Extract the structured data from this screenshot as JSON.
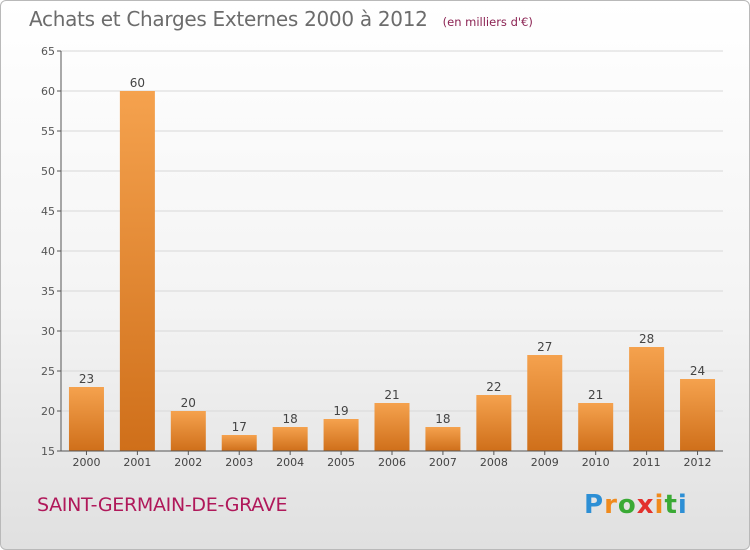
{
  "title": "Achats et Charges Externes 2000 à 2012",
  "subtitle": "(en milliers d'€)",
  "commune": "SAINT-GERMAIN-DE-GRAVE",
  "brand": {
    "text": "Proxiti"
  },
  "colors": {
    "bar_light": "#f5a24e",
    "bar_dark": "#cf6f1a",
    "axis": "#555555",
    "grid": "#d8d8d8",
    "title": "#6c6c6c",
    "commune": "#b0185a"
  },
  "chart_data": {
    "type": "bar",
    "categories": [
      "2000",
      "2001",
      "2002",
      "2003",
      "2004",
      "2005",
      "2006",
      "2007",
      "2008",
      "2009",
      "2010",
      "2011",
      "2012"
    ],
    "values": [
      23,
      60,
      20,
      17,
      18,
      19,
      21,
      18,
      22,
      27,
      21,
      28,
      24
    ],
    "ylim": [
      15,
      65
    ],
    "yticks": [
      15,
      20,
      25,
      30,
      35,
      40,
      45,
      50,
      55,
      60,
      65
    ],
    "grid": "horizontal",
    "data_labels": true
  }
}
